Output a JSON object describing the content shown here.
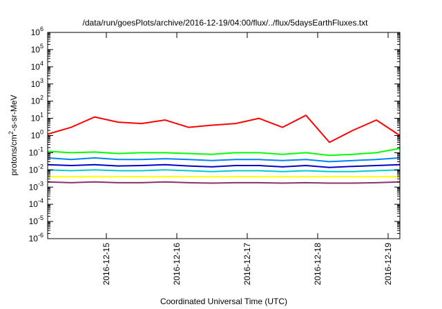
{
  "chart_data": {
    "type": "line",
    "title": "/data/run/goesPlots/archive/2016-12-19/04:00/flux/../flux/5daysEarthFluxes.txt",
    "xlabel": "Coordinated Universal Time (UTC)",
    "ylabel_parts": [
      "protons/cm",
      "2",
      "-s-sr-MeV"
    ],
    "y_scale": "log",
    "ylim": [
      1e-06,
      1000000.0
    ],
    "y_ticks": [
      {
        "base": "10",
        "exp": "-6"
      },
      {
        "base": "10",
        "exp": "-5"
      },
      {
        "base": "10",
        "exp": "-4"
      },
      {
        "base": "10",
        "exp": "-3"
      },
      {
        "base": "10",
        "exp": "-2"
      },
      {
        "base": "10",
        "exp": "-1"
      },
      {
        "base": "10",
        "exp": "0"
      },
      {
        "base": "10",
        "exp": "1"
      },
      {
        "base": "10",
        "exp": "2"
      },
      {
        "base": "10",
        "exp": "3"
      },
      {
        "base": "10",
        "exp": "4"
      },
      {
        "base": "10",
        "exp": "5"
      },
      {
        "base": "10",
        "exp": "6"
      }
    ],
    "xlim": [
      "2016-12-14T04:00",
      "2016-12-19T04:00"
    ],
    "x_ticks": [
      "2016-12-15",
      "2016-12-16",
      "2016-12-17",
      "2016-12-18",
      "2016-12-19"
    ],
    "grid": false,
    "legend": "none",
    "x": [
      "2016-12-14T04:00",
      "2016-12-14T12:00",
      "2016-12-14T20:00",
      "2016-12-15T04:00",
      "2016-12-15T12:00",
      "2016-12-15T20:00",
      "2016-12-16T04:00",
      "2016-12-16T12:00",
      "2016-12-16T20:00",
      "2016-12-17T04:00",
      "2016-12-17T12:00",
      "2016-12-17T20:00",
      "2016-12-18T04:00",
      "2016-12-18T12:00",
      "2016-12-18T20:00",
      "2016-12-19T04:00"
    ],
    "series": [
      {
        "color": "#ff0000",
        "values": [
          1.2,
          3,
          12,
          6,
          5,
          8,
          3,
          4,
          5,
          10,
          3,
          15,
          0.4,
          2,
          8,
          1
        ]
      },
      {
        "color": "#00ff00",
        "values": [
          0.12,
          0.1,
          0.11,
          0.09,
          0.1,
          0.1,
          0.09,
          0.08,
          0.1,
          0.1,
          0.08,
          0.1,
          0.07,
          0.08,
          0.1,
          0.18
        ]
      },
      {
        "color": "#0080ff",
        "values": [
          0.05,
          0.04,
          0.05,
          0.04,
          0.04,
          0.045,
          0.04,
          0.035,
          0.04,
          0.04,
          0.035,
          0.04,
          0.03,
          0.035,
          0.04,
          0.05
        ]
      },
      {
        "color": "#0000cc",
        "values": [
          0.02,
          0.018,
          0.02,
          0.017,
          0.018,
          0.02,
          0.017,
          0.015,
          0.018,
          0.018,
          0.015,
          0.018,
          0.014,
          0.016,
          0.018,
          0.02
        ]
      },
      {
        "color": "#00cccc",
        "values": [
          0.01,
          0.009,
          0.01,
          0.009,
          0.009,
          0.01,
          0.009,
          0.008,
          0.009,
          0.009,
          0.008,
          0.009,
          0.008,
          0.008,
          0.009,
          0.01
        ]
      },
      {
        "color": "#ffff00",
        "values": [
          0.004,
          0.004,
          0.004,
          0.004,
          0.004,
          0.004,
          0.004,
          0.004,
          0.004,
          0.004,
          0.004,
          0.004,
          0.004,
          0.004,
          0.004,
          0.004
        ]
      },
      {
        "color": "#883366",
        "values": [
          0.002,
          0.0018,
          0.002,
          0.0018,
          0.0018,
          0.002,
          0.0018,
          0.0017,
          0.0018,
          0.0018,
          0.0017,
          0.0018,
          0.0017,
          0.0017,
          0.0018,
          0.002
        ]
      }
    ]
  }
}
